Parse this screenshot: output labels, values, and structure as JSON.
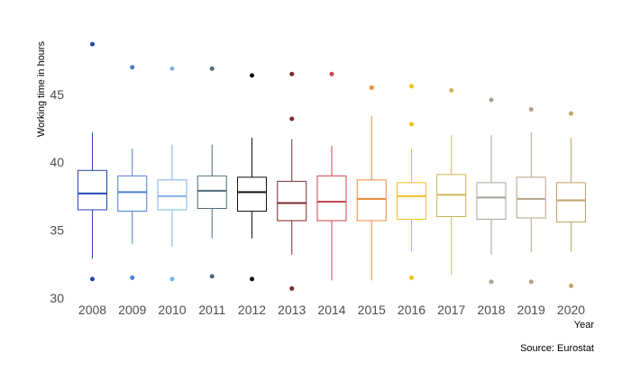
{
  "chart_data": {
    "type": "box",
    "title": "",
    "xlabel": "Year",
    "ylabel": "Working time in hours",
    "ylim": [
      29.8,
      49.7
    ],
    "yticks": [
      30,
      35,
      40,
      45
    ],
    "grid": false,
    "legend": "none",
    "source": "Source: Eurostat",
    "categories": [
      "2008",
      "2009",
      "2010",
      "2011",
      "2012",
      "2013",
      "2014",
      "2015",
      "2016",
      "2017",
      "2018",
      "2019",
      "2020"
    ],
    "series": [
      {
        "category": "2008",
        "color": "#2245b0",
        "min": 32.9,
        "q1": 36.5,
        "median": 37.7,
        "q3": 39.4,
        "max": 42.2,
        "outliers": [
          48.7,
          31.4
        ]
      },
      {
        "category": "2009",
        "color": "#4d7ad6",
        "min": 34.0,
        "q1": 36.4,
        "median": 37.8,
        "q3": 39.0,
        "max": 41.0,
        "outliers": [
          47.0,
          31.5
        ]
      },
      {
        "category": "2010",
        "color": "#7fb2e3",
        "min": 33.8,
        "q1": 36.5,
        "median": 37.5,
        "q3": 38.7,
        "max": 41.3,
        "outliers": [
          46.9,
          31.4
        ]
      },
      {
        "category": "2011",
        "color": "#4f6a7a",
        "min": 34.4,
        "q1": 36.6,
        "median": 37.9,
        "q3": 39.0,
        "max": 41.3,
        "outliers": [
          46.9,
          31.6
        ]
      },
      {
        "category": "2012",
        "color": "#111111",
        "min": 34.4,
        "q1": 36.4,
        "median": 37.8,
        "q3": 38.9,
        "max": 41.8,
        "outliers": [
          46.4,
          31.4
        ]
      },
      {
        "category": "2013",
        "color": "#7a2a2a",
        "min": 33.2,
        "q1": 35.7,
        "median": 37.0,
        "q3": 38.6,
        "max": 41.7,
        "outliers": [
          46.5,
          43.2,
          30.7
        ]
      },
      {
        "category": "2014",
        "color": "#c9474a",
        "min": 31.3,
        "q1": 35.7,
        "median": 37.1,
        "q3": 39.0,
        "max": 41.2,
        "outliers": [
          46.5
        ]
      },
      {
        "category": "2015",
        "color": "#e8893a",
        "min": 31.3,
        "q1": 35.7,
        "median": 37.3,
        "q3": 38.7,
        "max": 43.4,
        "outliers": [
          45.5
        ]
      },
      {
        "category": "2016",
        "color": "#f0c020",
        "min": 33.4,
        "q1": 35.8,
        "median": 37.5,
        "q3": 38.5,
        "max": 41.0,
        "outliers": [
          45.6,
          42.8,
          31.5
        ]
      },
      {
        "category": "2017",
        "color": "#cfb454",
        "min": 31.7,
        "q1": 36.0,
        "median": 37.6,
        "q3": 39.1,
        "max": 42.0,
        "outliers": [
          45.3
        ]
      },
      {
        "category": "2018",
        "color": "#a8a39a",
        "min": 33.2,
        "q1": 35.8,
        "median": 37.4,
        "q3": 38.5,
        "max": 42.0,
        "outliers": [
          44.6,
          31.2
        ]
      },
      {
        "category": "2019",
        "color": "#b5a283",
        "min": 33.4,
        "q1": 35.9,
        "median": 37.3,
        "q3": 38.9,
        "max": 42.2,
        "outliers": [
          43.9,
          31.2
        ]
      },
      {
        "category": "2020",
        "color": "#c4a066",
        "min": 33.4,
        "q1": 35.6,
        "median": 37.2,
        "q3": 38.5,
        "max": 41.8,
        "outliers": [
          43.6,
          30.9
        ]
      }
    ]
  }
}
